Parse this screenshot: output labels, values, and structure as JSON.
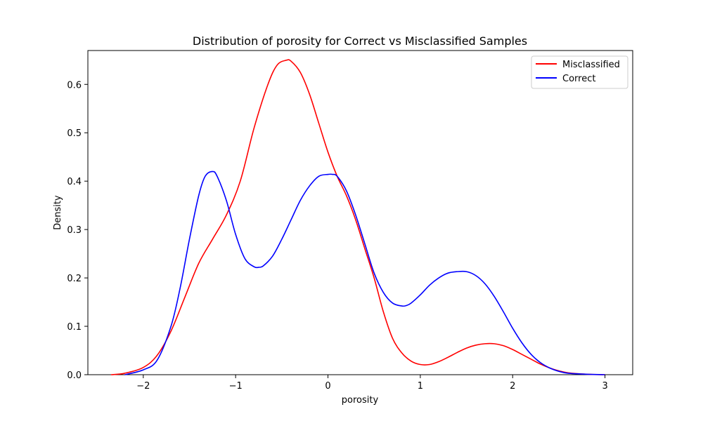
{
  "chart_data": {
    "type": "line",
    "title": "Distribution of porosity for Correct vs Misclassified Samples",
    "xlabel": "porosity",
    "ylabel": "Density",
    "xlim": [
      -2.6,
      3.3
    ],
    "ylim": [
      0,
      0.67
    ],
    "xticks": [
      -2,
      -1,
      0,
      1,
      2,
      3
    ],
    "xtick_labels": [
      "−2",
      "−1",
      "0",
      "1",
      "2",
      "3"
    ],
    "yticks": [
      0.0,
      0.1,
      0.2,
      0.3,
      0.4,
      0.5,
      0.6
    ],
    "ytick_labels": [
      "0.0",
      "0.1",
      "0.2",
      "0.3",
      "0.4",
      "0.5",
      "0.6"
    ],
    "grid": false,
    "legend_position": "top-right",
    "series": [
      {
        "name": "Misclassified",
        "color": "#ff0000",
        "x": [
          -2.35,
          -2.2,
          -2.0,
          -1.85,
          -1.7,
          -1.55,
          -1.4,
          -1.25,
          -1.1,
          -0.95,
          -0.8,
          -0.65,
          -0.55,
          -0.45,
          -0.4,
          -0.3,
          -0.2,
          -0.1,
          0.0,
          0.1,
          0.2,
          0.3,
          0.4,
          0.5,
          0.6,
          0.7,
          0.8,
          0.9,
          1.0,
          1.1,
          1.2,
          1.3,
          1.4,
          1.5,
          1.6,
          1.7,
          1.8,
          1.9,
          2.0,
          2.1,
          2.2,
          2.3,
          2.4,
          2.5,
          2.6,
          2.8,
          3.0
        ],
        "y": [
          0.0,
          0.003,
          0.015,
          0.04,
          0.09,
          0.16,
          0.23,
          0.28,
          0.33,
          0.4,
          0.51,
          0.6,
          0.64,
          0.65,
          0.648,
          0.625,
          0.58,
          0.52,
          0.46,
          0.41,
          0.37,
          0.32,
          0.26,
          0.2,
          0.13,
          0.075,
          0.045,
          0.028,
          0.021,
          0.021,
          0.027,
          0.036,
          0.046,
          0.055,
          0.061,
          0.064,
          0.064,
          0.06,
          0.052,
          0.042,
          0.032,
          0.022,
          0.014,
          0.008,
          0.004,
          0.001,
          0.0
        ]
      },
      {
        "name": "Correct",
        "color": "#0000ff",
        "x": [
          -2.2,
          -2.0,
          -1.85,
          -1.7,
          -1.6,
          -1.5,
          -1.4,
          -1.33,
          -1.25,
          -1.2,
          -1.1,
          -1.0,
          -0.9,
          -0.8,
          -0.75,
          -0.7,
          -0.6,
          -0.5,
          -0.4,
          -0.3,
          -0.2,
          -0.1,
          0.0,
          0.05,
          0.1,
          0.2,
          0.3,
          0.4,
          0.5,
          0.6,
          0.7,
          0.8,
          0.85,
          0.9,
          1.0,
          1.1,
          1.2,
          1.3,
          1.4,
          1.5,
          1.6,
          1.7,
          1.8,
          1.9,
          2.0,
          2.1,
          2.2,
          2.3,
          2.4,
          2.5,
          2.6,
          2.8,
          3.0
        ],
        "y": [
          0.0,
          0.01,
          0.03,
          0.1,
          0.18,
          0.28,
          0.37,
          0.41,
          0.42,
          0.41,
          0.36,
          0.29,
          0.24,
          0.223,
          0.222,
          0.225,
          0.245,
          0.28,
          0.32,
          0.36,
          0.39,
          0.41,
          0.414,
          0.414,
          0.41,
          0.38,
          0.33,
          0.27,
          0.21,
          0.17,
          0.148,
          0.142,
          0.143,
          0.148,
          0.165,
          0.185,
          0.2,
          0.21,
          0.213,
          0.213,
          0.205,
          0.188,
          0.162,
          0.13,
          0.096,
          0.066,
          0.042,
          0.025,
          0.014,
          0.007,
          0.003,
          0.001,
          0.0
        ]
      }
    ]
  }
}
